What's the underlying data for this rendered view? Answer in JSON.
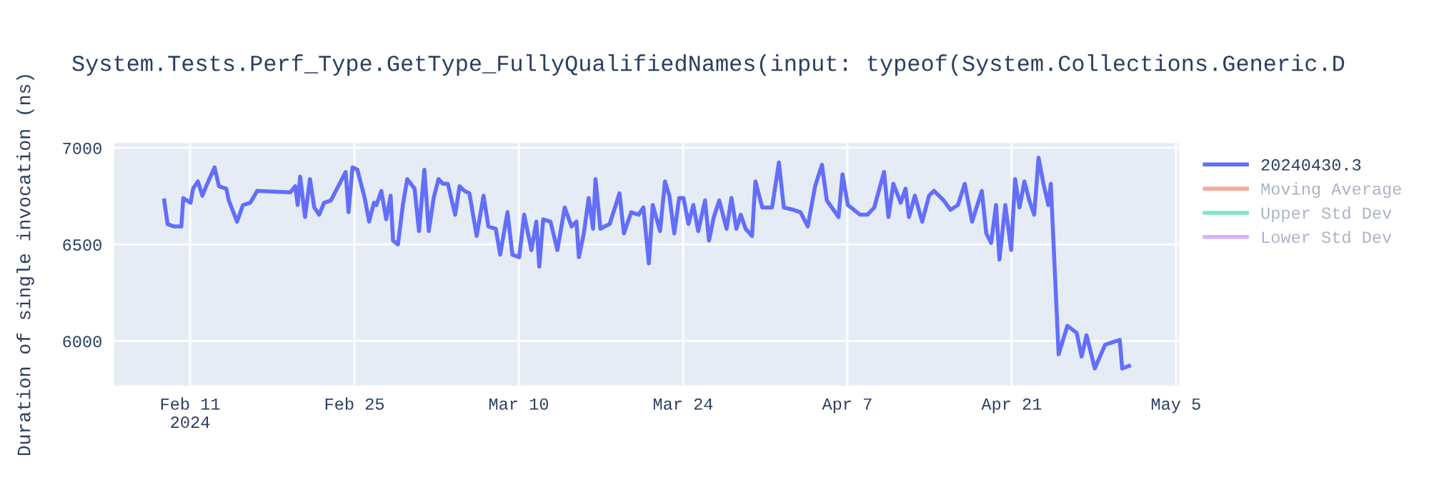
{
  "chart_data": {
    "type": "line",
    "title": "System.Tests.Perf_Type.GetType_FullyQualifiedNames(input: typeof(System.Collections.Generic.D",
    "ylabel": "Duration of single invocation (ns)",
    "xlim": [
      "2024-02-04T13:00",
      "2024-05-05T06:00"
    ],
    "xticks": [
      {
        "value": "2024-02-11",
        "label": "Feb 11\n2024"
      },
      {
        "value": "2024-02-25",
        "label": "Feb 25"
      },
      {
        "value": "2024-03-10",
        "label": "Mar 10"
      },
      {
        "value": "2024-03-24",
        "label": "Mar 24"
      },
      {
        "value": "2024-04-07",
        "label": "Apr 7"
      },
      {
        "value": "2024-04-21",
        "label": "Apr 21"
      },
      {
        "value": "2024-05-05",
        "label": "May 5"
      }
    ],
    "ylim": [
      5770,
      7025
    ],
    "yticks": [
      6000,
      6500,
      7000
    ],
    "grid": true,
    "legend": "right",
    "marker": "none",
    "line_style": "solid",
    "series": [
      {
        "name": "20240430.3",
        "color": "#636efa",
        "x": [
          "2024-02-08T19:00",
          "2024-02-09T02:00",
          "2024-02-09T15:00",
          "2024-02-10T06:00",
          "2024-02-10T10:00",
          "2024-02-11T01:00",
          "2024-02-11T06:00",
          "2024-02-11T16:00",
          "2024-02-12T01:00",
          "2024-02-12T11:00",
          "2024-02-13T02:00",
          "2024-02-13T11:00",
          "2024-02-14T02:00",
          "2024-02-14T07:00",
          "2024-02-15T00:00",
          "2024-02-15T12:00",
          "2024-02-16T03:00",
          "2024-02-16T17:00",
          "2024-02-19T13:00",
          "2024-02-19T23:00",
          "2024-02-20T04:00",
          "2024-02-20T09:00",
          "2024-02-20T19:00",
          "2024-02-21T05:00",
          "2024-02-21T14:00",
          "2024-02-22T00:00",
          "2024-02-22T10:00",
          "2024-02-23T00:00",
          "2024-02-23T15:00",
          "2024-02-24T06:00",
          "2024-02-24T12:00",
          "2024-02-24T20:00",
          "2024-02-25T06:00",
          "2024-02-25T21:00",
          "2024-02-26T06:00",
          "2024-02-26T16:00",
          "2024-02-26T21:00",
          "2024-02-27T07:00",
          "2024-02-27T17:00",
          "2024-02-28T02:00",
          "2024-02-28T07:00",
          "2024-02-28T17:00",
          "2024-02-29T03:00",
          "2024-02-29T12:00",
          "2024-03-01T03:00",
          "2024-03-01T12:00",
          "2024-03-01T23:00",
          "2024-03-02T08:00",
          "2024-03-02T18:00",
          "2024-03-03T04:00",
          "2024-03-03T13:00",
          "2024-03-03T23:00",
          "2024-03-04T14:00",
          "2024-03-04T23:00",
          "2024-03-05T09:00",
          "2024-03-05T19:00",
          "2024-03-06T10:00",
          "2024-03-07T00:00",
          "2024-03-07T10:00",
          "2024-03-08T01:00",
          "2024-03-08T10:00",
          "2024-03-09T01:00",
          "2024-03-09T11:00",
          "2024-03-10T01:00",
          "2024-03-10T11:00",
          "2024-03-11T02:00",
          "2024-03-11T12:00",
          "2024-03-11T18:00",
          "2024-03-12T02:00",
          "2024-03-12T17:00",
          "2024-03-13T07:00",
          "2024-03-13T22:00",
          "2024-03-14T12:00",
          "2024-03-14T22:00",
          "2024-03-15T03:00",
          "2024-03-15T13:00",
          "2024-03-15T23:00",
          "2024-03-16T08:00",
          "2024-03-16T13:00",
          "2024-03-16T23:00",
          "2024-03-17T18:00",
          "2024-03-18T14:00",
          "2024-03-18T23:00",
          "2024-03-19T14:00",
          "2024-03-20T05:00",
          "2024-03-20T15:00",
          "2024-03-21T02:00",
          "2024-03-21T10:00",
          "2024-03-22T01:00",
          "2024-03-22T11:00",
          "2024-03-22T20:00",
          "2024-03-23T06:00",
          "2024-03-23T16:00",
          "2024-03-24T01:00",
          "2024-03-24T11:00",
          "2024-03-24T21:00",
          "2024-03-25T07:00",
          "2024-03-25T21:00",
          "2024-03-26T05:00",
          "2024-03-26T15:00",
          "2024-03-27T02:00",
          "2024-03-27T17:00",
          "2024-03-28T03:00",
          "2024-03-28T13:00",
          "2024-03-28T22:00",
          "2024-03-29T08:00",
          "2024-03-29T21:00",
          "2024-03-30T04:00",
          "2024-03-30T18:00",
          "2024-03-31T14:00",
          "2024-04-01T04:00",
          "2024-04-01T14:00",
          "2024-04-02T10:00",
          "2024-04-03T00:00",
          "2024-04-03T15:00",
          "2024-04-04T06:00",
          "2024-04-04T20:00",
          "2024-04-05T06:00",
          "2024-04-06T06:00",
          "2024-04-06T14:00",
          "2024-04-07T01:00",
          "2024-04-08T02:00",
          "2024-04-08T17:00",
          "2024-04-09T07:00",
          "2024-04-10T03:00",
          "2024-04-10T12:00",
          "2024-04-10T22:00",
          "2024-04-11T13:00",
          "2024-04-11T23:00",
          "2024-04-12T06:00",
          "2024-04-12T18:00",
          "2024-04-13T09:00",
          "2024-04-13T23:00",
          "2024-04-14T09:00",
          "2024-04-15T05:00",
          "2024-04-15T19:00",
          "2024-04-16T10:00",
          "2024-04-17T00:00",
          "2024-04-17T15:00",
          "2024-04-18T11:00",
          "2024-04-18T20:00",
          "2024-04-19T06:00",
          "2024-04-19T16:00",
          "2024-04-19T23:00",
          "2024-04-20T11:00",
          "2024-04-20T23:00",
          "2024-04-21T07:00",
          "2024-04-21T16:00",
          "2024-04-22T02:00",
          "2024-04-22T12:00",
          "2024-04-22T22:00",
          "2024-04-23T07:00",
          "2024-04-23T17:00",
          "2024-04-24T03:00",
          "2024-04-24T08:00",
          "2024-04-25T00:00",
          "2024-04-25T18:00",
          "2024-04-26T13:00",
          "2024-04-26T23:00",
          "2024-04-27T09:00",
          "2024-04-28T02:00",
          "2024-04-28T23:00",
          "2024-04-30T05:00",
          "2024-04-30T10:00",
          "2024-05-01T00:00"
        ],
        "values": [
          6728,
          6605,
          6593,
          6593,
          6740,
          6716,
          6789,
          6826,
          6752,
          6814,
          6899,
          6801,
          6789,
          6728,
          6618,
          6704,
          6716,
          6777,
          6770,
          6801,
          6704,
          6851,
          6642,
          6838,
          6691,
          6654,
          6716,
          6728,
          6801,
          6875,
          6667,
          6899,
          6887,
          6740,
          6618,
          6716,
          6704,
          6777,
          6630,
          6752,
          6520,
          6500,
          6704,
          6838,
          6789,
          6569,
          6887,
          6569,
          6740,
          6838,
          6814,
          6814,
          6654,
          6801,
          6777,
          6765,
          6544,
          6752,
          6593,
          6581,
          6447,
          6667,
          6447,
          6434,
          6654,
          6471,
          6618,
          6385,
          6630,
          6618,
          6471,
          6691,
          6593,
          6618,
          6434,
          6557,
          6740,
          6581,
          6838,
          6581,
          6606,
          6765,
          6557,
          6667,
          6654,
          6691,
          6402,
          6704,
          6569,
          6826,
          6752,
          6557,
          6740,
          6740,
          6606,
          6704,
          6569,
          6728,
          6520,
          6642,
          6728,
          6581,
          6740,
          6581,
          6654,
          6581,
          6544,
          6826,
          6691,
          6691,
          6924,
          6691,
          6679,
          6667,
          6593,
          6801,
          6912,
          6728,
          6642,
          6863,
          6704,
          6654,
          6654,
          6691,
          6875,
          6642,
          6814,
          6716,
          6789,
          6642,
          6752,
          6618,
          6752,
          6777,
          6728,
          6679,
          6704,
          6814,
          6618,
          6777,
          6557,
          6508,
          6704,
          6422,
          6704,
          6471,
          6838,
          6691,
          6826,
          6728,
          6654,
          6949,
          6814,
          6704,
          6814,
          5932,
          6079,
          6042,
          5920,
          6030,
          5858,
          5981,
          6006,
          5858,
          5871
        ]
      },
      {
        "name": "Moving Average",
        "color": "#ef553b"
      },
      {
        "name": "Upper Std Dev",
        "color": "#00cc96"
      },
      {
        "name": "Lower Std Dev",
        "color": "#ab63fa"
      }
    ]
  }
}
